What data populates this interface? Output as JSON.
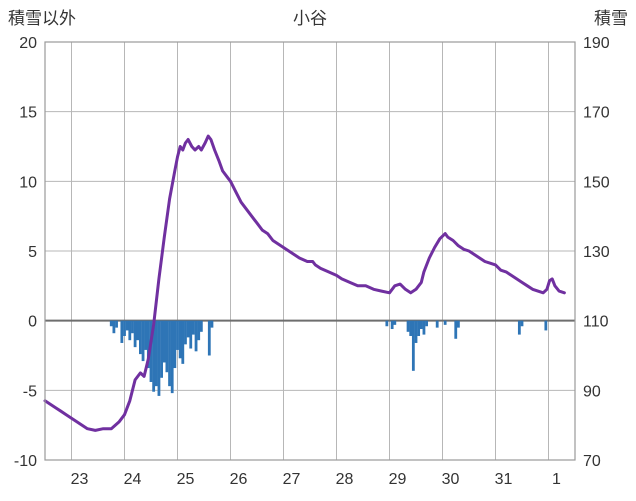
{
  "chart_data": {
    "type": "line+bar",
    "title": "小谷",
    "left_axis_label": "積雪以外",
    "right_axis_label": "積雪",
    "grid": true,
    "legend": "none",
    "x_range": [
      22.5,
      32.5
    ],
    "left_ylim": [
      -10,
      20
    ],
    "right_ylim": [
      70,
      190
    ],
    "left_yticks": [
      -10,
      -5,
      0,
      5,
      10,
      15,
      20
    ],
    "right_yticks": [
      70,
      90,
      110,
      130,
      150,
      170,
      190
    ],
    "x_ticks": [
      {
        "x": 23,
        "label": "23"
      },
      {
        "x": 24,
        "label": "24"
      },
      {
        "x": 25,
        "label": "25"
      },
      {
        "x": 26,
        "label": "26"
      },
      {
        "x": 27,
        "label": "27"
      },
      {
        "x": 28,
        "label": "28"
      },
      {
        "x": 29,
        "label": "29"
      },
      {
        "x": 30,
        "label": "30"
      },
      {
        "x": 31,
        "label": "31"
      },
      {
        "x": 32,
        "label": "1"
      }
    ],
    "colors": {
      "line": "#7030A0",
      "bars": "#2E75B6",
      "grid": "#b7b7b7",
      "zero_line": "#6e6e6e",
      "border": "#9a9a9a",
      "text": "#333333"
    },
    "line_series": {
      "name": "積雪",
      "axis": "right",
      "points": [
        [
          22.5,
          87
        ],
        [
          22.6,
          86
        ],
        [
          22.7,
          85
        ],
        [
          22.8,
          84
        ],
        [
          22.9,
          83
        ],
        [
          23.0,
          82
        ],
        [
          23.1,
          81
        ],
        [
          23.2,
          80
        ],
        [
          23.3,
          79
        ],
        [
          23.45,
          78.5
        ],
        [
          23.6,
          79
        ],
        [
          23.75,
          79
        ],
        [
          23.9,
          81
        ],
        [
          24.0,
          83
        ],
        [
          24.1,
          87
        ],
        [
          24.2,
          93
        ],
        [
          24.3,
          95
        ],
        [
          24.37,
          94
        ],
        [
          24.45,
          99
        ],
        [
          24.55,
          109
        ],
        [
          24.65,
          122
        ],
        [
          24.75,
          134
        ],
        [
          24.85,
          145
        ],
        [
          24.95,
          153
        ],
        [
          25.0,
          157
        ],
        [
          25.05,
          160
        ],
        [
          25.1,
          159
        ],
        [
          25.15,
          161
        ],
        [
          25.2,
          162
        ],
        [
          25.27,
          160
        ],
        [
          25.33,
          159
        ],
        [
          25.4,
          160
        ],
        [
          25.45,
          159
        ],
        [
          25.52,
          161
        ],
        [
          25.58,
          163
        ],
        [
          25.63,
          162
        ],
        [
          25.7,
          159
        ],
        [
          25.78,
          156
        ],
        [
          25.85,
          153
        ],
        [
          25.95,
          151
        ],
        [
          26.0,
          150
        ],
        [
          26.1,
          147
        ],
        [
          26.2,
          144
        ],
        [
          26.3,
          142
        ],
        [
          26.4,
          140
        ],
        [
          26.5,
          138
        ],
        [
          26.6,
          136
        ],
        [
          26.7,
          135
        ],
        [
          26.8,
          133
        ],
        [
          26.9,
          132
        ],
        [
          27.0,
          131
        ],
        [
          27.1,
          130
        ],
        [
          27.2,
          129
        ],
        [
          27.3,
          128
        ],
        [
          27.45,
          127
        ],
        [
          27.55,
          127
        ],
        [
          27.6,
          126
        ],
        [
          27.7,
          125
        ],
        [
          27.85,
          124
        ],
        [
          28.0,
          123
        ],
        [
          28.1,
          122
        ],
        [
          28.25,
          121
        ],
        [
          28.4,
          120
        ],
        [
          28.55,
          120
        ],
        [
          28.7,
          119
        ],
        [
          28.85,
          118.5
        ],
        [
          29.0,
          118
        ],
        [
          29.1,
          120
        ],
        [
          29.2,
          120.5
        ],
        [
          29.3,
          119
        ],
        [
          29.4,
          118
        ],
        [
          29.5,
          119
        ],
        [
          29.6,
          121
        ],
        [
          29.65,
          124
        ],
        [
          29.75,
          128
        ],
        [
          29.85,
          131
        ],
        [
          29.95,
          133.5
        ],
        [
          30.05,
          135
        ],
        [
          30.1,
          134
        ],
        [
          30.2,
          133
        ],
        [
          30.3,
          131.5
        ],
        [
          30.4,
          130.5
        ],
        [
          30.5,
          130
        ],
        [
          30.6,
          129
        ],
        [
          30.7,
          128
        ],
        [
          30.8,
          127
        ],
        [
          30.9,
          126.5
        ],
        [
          31.0,
          126
        ],
        [
          31.1,
          124.5
        ],
        [
          31.2,
          124
        ],
        [
          31.3,
          123
        ],
        [
          31.4,
          122
        ],
        [
          31.5,
          121
        ],
        [
          31.6,
          120
        ],
        [
          31.7,
          119
        ],
        [
          31.8,
          118.5
        ],
        [
          31.9,
          118
        ],
        [
          31.97,
          119
        ],
        [
          32.02,
          121.5
        ],
        [
          32.07,
          122
        ],
        [
          32.12,
          120
        ],
        [
          32.2,
          118.5
        ],
        [
          32.3,
          118
        ]
      ]
    },
    "bar_series": {
      "name": "積雪以外",
      "axis": "left",
      "bars": [
        [
          23.75,
          -0.4
        ],
        [
          23.8,
          -0.9
        ],
        [
          23.85,
          -0.5
        ],
        [
          23.95,
          -1.6
        ],
        [
          24.0,
          -1.1
        ],
        [
          24.05,
          -0.7
        ],
        [
          24.1,
          -1.4
        ],
        [
          24.15,
          -0.9
        ],
        [
          24.2,
          -1.9
        ],
        [
          24.25,
          -1.4
        ],
        [
          24.3,
          -2.4
        ],
        [
          24.35,
          -2.9
        ],
        [
          24.4,
          -2.1
        ],
        [
          24.45,
          -3.4
        ],
        [
          24.5,
          -4.4
        ],
        [
          24.55,
          -5.1
        ],
        [
          24.6,
          -4.7
        ],
        [
          24.65,
          -5.4
        ],
        [
          24.7,
          -4.1
        ],
        [
          24.75,
          -3.0
        ],
        [
          24.8,
          -3.7
        ],
        [
          24.85,
          -4.7
        ],
        [
          24.9,
          -5.2
        ],
        [
          24.95,
          -3.4
        ],
        [
          25.0,
          -2.1
        ],
        [
          25.05,
          -2.7
        ],
        [
          25.1,
          -3.1
        ],
        [
          25.15,
          -1.7
        ],
        [
          25.2,
          -1.2
        ],
        [
          25.25,
          -2.0
        ],
        [
          25.3,
          -1.0
        ],
        [
          25.35,
          -2.2
        ],
        [
          25.4,
          -1.4
        ],
        [
          25.45,
          -0.8
        ],
        [
          25.6,
          -2.5
        ],
        [
          25.65,
          -0.5
        ],
        [
          28.95,
          -0.4
        ],
        [
          29.05,
          -0.6
        ],
        [
          29.1,
          -0.3
        ],
        [
          29.35,
          -0.8
        ],
        [
          29.4,
          -1.1
        ],
        [
          29.45,
          -3.6
        ],
        [
          29.5,
          -1.6
        ],
        [
          29.55,
          -1.1
        ],
        [
          29.6,
          -0.6
        ],
        [
          29.65,
          -1.0
        ],
        [
          29.7,
          -0.4
        ],
        [
          29.9,
          -0.5
        ],
        [
          30.05,
          -0.3
        ],
        [
          30.25,
          -1.3
        ],
        [
          30.3,
          -0.5
        ],
        [
          31.45,
          -1.0
        ],
        [
          31.5,
          -0.4
        ],
        [
          31.95,
          -0.7
        ]
      ]
    }
  }
}
